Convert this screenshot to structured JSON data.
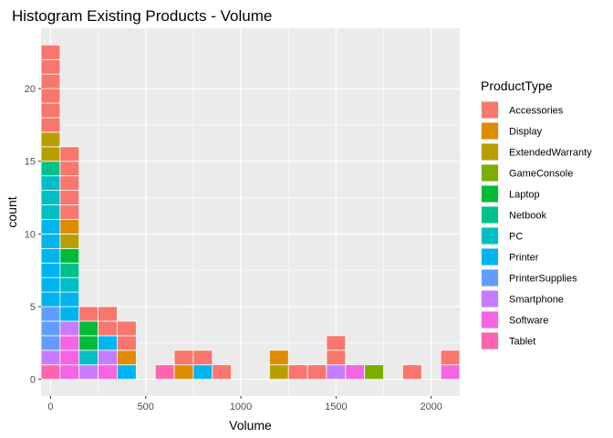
{
  "chart_data": {
    "type": "bar",
    "stacked": true,
    "title": "Histogram Existing Products - Volume",
    "xlabel": "Volume",
    "ylabel": "count",
    "xlim": [
      -50,
      2150
    ],
    "ylim": [
      -1.15,
      24.15
    ],
    "x_ticks": [
      0,
      500,
      1000,
      1500,
      2000
    ],
    "y_ticks": [
      0,
      5,
      10,
      15,
      20
    ],
    "grid": true,
    "legend_position": "right",
    "legend_title": "ProductType",
    "series": [
      {
        "name": "Accessories",
        "color": "#F8766D"
      },
      {
        "name": "Display",
        "color": "#DE8C00"
      },
      {
        "name": "ExtendedWarranty",
        "color": "#B79F00"
      },
      {
        "name": "GameConsole",
        "color": "#7CAE00"
      },
      {
        "name": "Laptop",
        "color": "#00BA38"
      },
      {
        "name": "Netbook",
        "color": "#00C08B"
      },
      {
        "name": "PC",
        "color": "#00BFC4"
      },
      {
        "name": "Printer",
        "color": "#00B4F0"
      },
      {
        "name": "PrinterSupplies",
        "color": "#619CFF"
      },
      {
        "name": "Smartphone",
        "color": "#C77CFF"
      },
      {
        "name": "Software",
        "color": "#F564E3"
      },
      {
        "name": "Tablet",
        "color": "#FF64B0"
      }
    ],
    "bin_width": 100,
    "bins": [
      {
        "center": 0,
        "counts": {
          "Tablet": 1,
          "Smartphone": 1,
          "PrinterSupplies": 3,
          "Printer": 6,
          "PC": 3,
          "Netbook": 1,
          "ExtendedWarranty": 2,
          "Accessories": 6
        }
      },
      {
        "center": 100,
        "counts": {
          "Software": 3,
          "Smartphone": 1,
          "Printer": 2,
          "PC": 1,
          "Netbook": 1,
          "Laptop": 1,
          "ExtendedWarranty": 1,
          "Display": 1,
          "Accessories": 5
        }
      },
      {
        "center": 200,
        "counts": {
          "Smartphone": 1,
          "PC": 1,
          "Laptop": 2,
          "Accessories": 1
        }
      },
      {
        "center": 300,
        "counts": {
          "Software": 1,
          "Smartphone": 1,
          "Printer": 1,
          "Accessories": 2
        }
      },
      {
        "center": 400,
        "counts": {
          "Printer": 1,
          "Display": 1,
          "Accessories": 2
        }
      },
      {
        "center": 600,
        "counts": {
          "Tablet": 1
        }
      },
      {
        "center": 700,
        "counts": {
          "Display": 1,
          "Accessories": 1
        }
      },
      {
        "center": 800,
        "counts": {
          "Printer": 1,
          "Accessories": 1
        }
      },
      {
        "center": 900,
        "counts": {
          "Accessories": 1
        }
      },
      {
        "center": 1200,
        "counts": {
          "ExtendedWarranty": 1,
          "Display": 1
        }
      },
      {
        "center": 1300,
        "counts": {
          "Accessories": 1
        }
      },
      {
        "center": 1400,
        "counts": {
          "Accessories": 1
        }
      },
      {
        "center": 1500,
        "counts": {
          "Smartphone": 1,
          "Accessories": 2
        }
      },
      {
        "center": 1600,
        "counts": {
          "Software": 1
        }
      },
      {
        "center": 1700,
        "counts": {
          "GameConsole": 1
        }
      },
      {
        "center": 1900,
        "counts": {
          "Accessories": 1
        }
      },
      {
        "center": 2100,
        "counts": {
          "Software": 1,
          "Accessories": 1
        }
      }
    ]
  }
}
